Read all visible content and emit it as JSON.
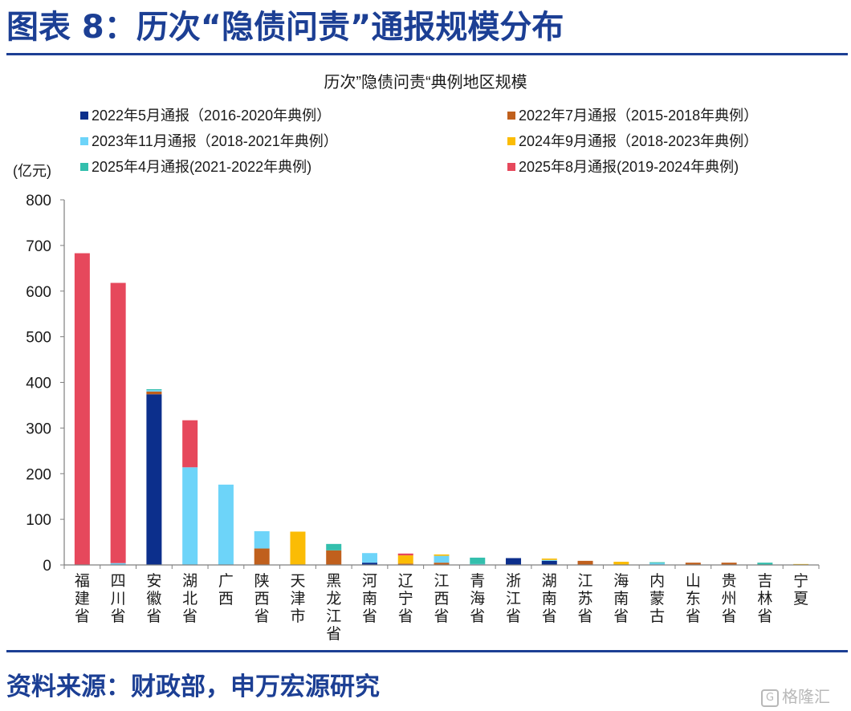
{
  "figure": {
    "title": "图表 8：历次“隐债问责”通报规模分布",
    "source": "资料来源：财政部，申万宏源研究",
    "watermark": "格隆汇"
  },
  "chart_data": {
    "type": "bar",
    "stacked": true,
    "title": "历次”隐债问责“典例地区规模",
    "ylabel": "(亿元)",
    "xlabel": "",
    "ylim": [
      0,
      800
    ],
    "yticks": [
      0,
      100,
      200,
      300,
      400,
      500,
      600,
      700,
      800
    ],
    "grid": false,
    "legend_position": "top",
    "categories": [
      "福建省",
      "四川省",
      "安徽省",
      "湖北省",
      "广西",
      "陕西省",
      "天津市",
      "黑龙江省",
      "河南省",
      "辽宁省",
      "江西省",
      "青海省",
      "浙江省",
      "湖南省",
      "江苏省",
      "海南省",
      "内蒙古",
      "山东省",
      "贵州省",
      "吉林省",
      "宁夏"
    ],
    "series": [
      {
        "name": "2022年5月通报（2016-2020年典例）",
        "color": "#0c2f8c",
        "values": [
          0,
          0,
          374,
          0,
          0,
          0,
          0,
          0,
          5,
          0,
          0,
          0,
          15,
          9,
          0,
          0,
          0,
          0,
          0,
          0,
          0
        ]
      },
      {
        "name": "2022年7月通报（2015-2018年典例）",
        "color": "#c0601d",
        "values": [
          0,
          0,
          6,
          0,
          0,
          36,
          0,
          32,
          0,
          3,
          5,
          0,
          0,
          0,
          9,
          0,
          0,
          5,
          5,
          0,
          0
        ]
      },
      {
        "name": "2023年11月通报（2018-2021年典例）",
        "color": "#6dd4f9",
        "values": [
          0,
          4,
          3,
          214,
          176,
          38,
          0,
          0,
          21,
          0,
          15,
          2,
          0,
          2,
          0,
          0,
          4,
          0,
          0,
          0,
          0
        ]
      },
      {
        "name": "2024年9月通报（2018-2023年典例）",
        "color": "#fbbc05",
        "values": [
          0,
          0,
          0,
          0,
          0,
          0,
          73,
          0,
          0,
          18,
          3,
          0,
          0,
          3,
          0,
          7,
          0,
          0,
          0,
          0,
          2
        ]
      },
      {
        "name": "2025年4月通报(2021-2022年典例)",
        "color": "#33bfad",
        "values": [
          0,
          0,
          2,
          0,
          0,
          0,
          0,
          14,
          0,
          0,
          0,
          14,
          0,
          0,
          0,
          0,
          2,
          0,
          0,
          5,
          0
        ]
      },
      {
        "name": "2025年8月通报(2019-2024年典例)",
        "color": "#e6485c",
        "values": [
          683,
          614,
          0,
          103,
          0,
          0,
          0,
          0,
          0,
          4,
          0,
          0,
          0,
          0,
          0,
          0,
          0,
          0,
          0,
          0,
          0
        ]
      }
    ]
  }
}
